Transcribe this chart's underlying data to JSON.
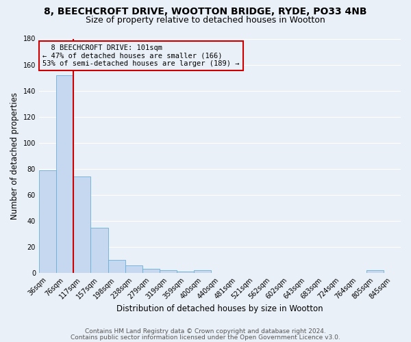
{
  "title_line1": "8, BEECHCROFT DRIVE, WOOTTON BRIDGE, RYDE, PO33 4NB",
  "title_line2": "Size of property relative to detached houses in Wootton",
  "xlabel": "Distribution of detached houses by size in Wootton",
  "ylabel": "Number of detached properties",
  "bin_labels": [
    "36sqm",
    "76sqm",
    "117sqm",
    "157sqm",
    "198sqm",
    "238sqm",
    "279sqm",
    "319sqm",
    "359sqm",
    "400sqm",
    "440sqm",
    "481sqm",
    "521sqm",
    "562sqm",
    "602sqm",
    "643sqm",
    "683sqm",
    "724sqm",
    "764sqm",
    "805sqm",
    "845sqm"
  ],
  "bar_heights": [
    79,
    152,
    74,
    35,
    10,
    6,
    3,
    2,
    1,
    2,
    0,
    0,
    0,
    0,
    0,
    0,
    0,
    0,
    0,
    2,
    0
  ],
  "bar_color": "#c5d8ef",
  "bar_edge_color": "#6baed6",
  "vline_x_bin": 1.5,
  "vline_color": "#cc0000",
  "annotation_box_edge_color": "#cc0000",
  "annotation_line1": "8 BEECHCROFT DRIVE: 101sqm",
  "annotation_line2": "← 47% of detached houses are smaller (166)",
  "annotation_line3": "53% of semi-detached houses are larger (189) →",
  "footer_line1": "Contains HM Land Registry data © Crown copyright and database right 2024.",
  "footer_line2": "Contains public sector information licensed under the Open Government Licence v3.0.",
  "ylim": [
    0,
    180
  ],
  "yticks": [
    0,
    20,
    40,
    60,
    80,
    100,
    120,
    140,
    160,
    180
  ],
  "bg_color": "#eaf0f8",
  "grid_color": "#ffffff",
  "title_fontsize": 10,
  "subtitle_fontsize": 9,
  "axis_label_fontsize": 8.5,
  "tick_fontsize": 7,
  "annotation_fontsize": 7.5,
  "footer_fontsize": 6.5
}
